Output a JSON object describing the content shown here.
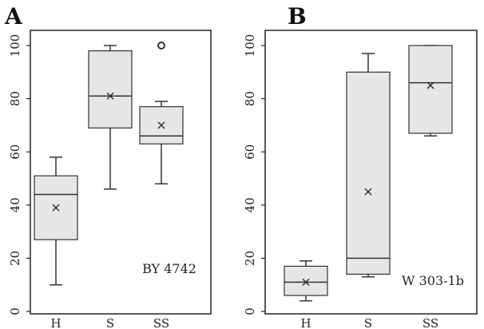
{
  "chart_data": [
    {
      "type": "box",
      "panel_label": "A",
      "annotation": "BY 4742",
      "categories": [
        "H",
        "S",
        "SS"
      ],
      "ylim": [
        0,
        100
      ],
      "yticks": [
        0,
        20,
        40,
        60,
        80,
        100
      ],
      "grid": false,
      "boxes": [
        {
          "category": "H",
          "whisker_low": 10,
          "q1": 27,
          "median": 44,
          "q3": 51,
          "whisker_high": 58,
          "mean": 39,
          "outliers": []
        },
        {
          "category": "S",
          "whisker_low": 46,
          "q1": 69,
          "median": 81,
          "q3": 98,
          "whisker_high": 100,
          "mean": 81,
          "outliers": []
        },
        {
          "category": "SS",
          "whisker_low": 48,
          "q1": 63,
          "median": 66,
          "q3": 77,
          "whisker_high": 79,
          "mean": 70,
          "outliers": [
            100
          ]
        }
      ]
    },
    {
      "type": "box",
      "panel_label": "B",
      "annotation": "W 303-1b",
      "categories": [
        "H",
        "S",
        "SS"
      ],
      "ylim": [
        0,
        100
      ],
      "yticks": [
        0,
        20,
        40,
        60,
        80,
        100
      ],
      "grid": false,
      "boxes": [
        {
          "category": "H",
          "whisker_low": 4,
          "q1": 6,
          "median": 11,
          "q3": 17,
          "whisker_high": 19,
          "mean": 11,
          "outliers": []
        },
        {
          "category": "S",
          "whisker_low": 13,
          "q1": 14,
          "median": 20,
          "q3": 90,
          "whisker_high": 97,
          "mean": 45,
          "outliers": []
        },
        {
          "category": "SS",
          "whisker_low": 66,
          "q1": 67,
          "median": 86,
          "q3": 100,
          "whisker_high": 100,
          "mean": 85,
          "outliers": []
        }
      ]
    }
  ],
  "colors": {
    "box_fill": "#e6e6e6",
    "line": "#333333",
    "frame": "#222222"
  }
}
